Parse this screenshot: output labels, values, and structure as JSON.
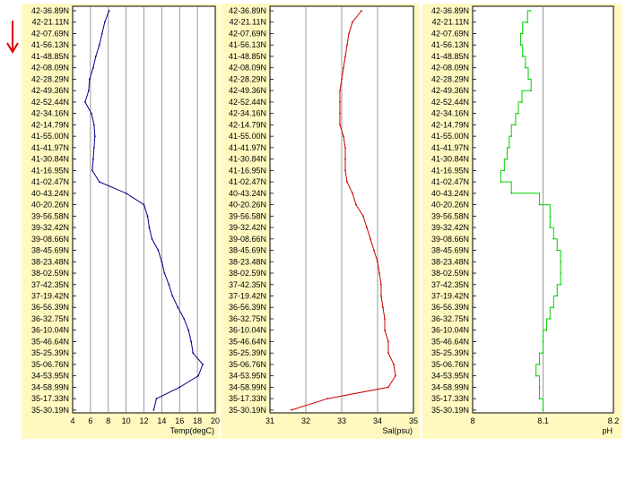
{
  "indicator": {
    "icon": "down-arrow-icon",
    "color": "#e00000"
  },
  "colors": {
    "panel_bg": "#fff9c0",
    "plot_bg": "#ffffff",
    "grid": "#808080"
  },
  "y_categories": [
    "42-36.89N",
    "42-21.11N",
    "42-07.69N",
    "41-56.13N",
    "41-48.85N",
    "42-08.09N",
    "42-28.29N",
    "42-49.36N",
    "42-52.44N",
    "42-34.16N",
    "42-14.79N",
    "41-55.00N",
    "41-41.97N",
    "41-30.84N",
    "41-16.95N",
    "41-02.47N",
    "40-43.24N",
    "40-20.26N",
    "39-56.58N",
    "39-32.42N",
    "39-08.66N",
    "38-45.69N",
    "38-23.48N",
    "38-02.59N",
    "37-42.35N",
    "37-19.42N",
    "36-56.39N",
    "36-32.75N",
    "36-10.04N",
    "35-46.64N",
    "35-25.39N",
    "35-06.76N",
    "34-53.95N",
    "34-58.99N",
    "35-17.33N",
    "35-30.19N"
  ],
  "chart_data": [
    {
      "type": "line",
      "orientation": "vertical-profile",
      "xlabel": "Temp(degC)",
      "xlim": [
        4,
        20
      ],
      "xticks": [
        "4",
        "6",
        "8",
        "10",
        "12",
        "14",
        "16",
        "18",
        "20"
      ],
      "grid": true,
      "color": "#00008b",
      "series": [
        {
          "values": [
            8.1,
            7.6,
            7.3,
            7.0,
            6.6,
            6.3,
            5.9,
            5.8,
            5.4,
            6.1,
            6.4,
            6.5,
            6.4,
            6.3,
            6.2,
            7.0,
            10.0,
            12.0,
            12.4,
            12.6,
            12.9,
            13.6,
            14.0,
            14.3,
            14.8,
            15.2,
            15.8,
            16.5,
            17.0,
            17.3,
            17.5,
            18.6,
            18.1,
            16.0,
            13.4,
            13.1
          ]
        }
      ]
    },
    {
      "type": "line",
      "orientation": "vertical-profile",
      "xlabel": "Sal(psu)",
      "xlim": [
        31,
        35
      ],
      "xticks": [
        "31",
        "32",
        "33",
        "34",
        "35"
      ],
      "grid": true,
      "color": "#cc0000",
      "series": [
        {
          "values": [
            33.55,
            33.3,
            33.2,
            33.15,
            33.1,
            33.05,
            33.0,
            32.95,
            32.95,
            32.95,
            32.95,
            33.05,
            33.1,
            33.1,
            33.1,
            33.15,
            33.3,
            33.4,
            33.6,
            33.7,
            33.8,
            33.9,
            34.0,
            34.05,
            34.1,
            34.1,
            34.15,
            34.2,
            34.2,
            34.3,
            34.3,
            34.45,
            34.5,
            34.3,
            32.6,
            31.6
          ]
        }
      ]
    },
    {
      "type": "line",
      "orientation": "vertical-profile",
      "xlabel": "pH",
      "xlim": [
        8,
        8.2
      ],
      "xticks": [
        "8",
        "8.1",
        "8.2"
      ],
      "grid": true,
      "color": "#00d000",
      "series": [
        {
          "values": [
            8.082,
            8.078,
            8.071,
            8.068,
            8.071,
            8.075,
            8.079,
            8.083,
            8.07,
            8.065,
            8.061,
            8.055,
            8.052,
            8.049,
            8.045,
            8.04,
            8.055,
            8.095,
            8.11,
            8.11,
            8.115,
            8.12,
            8.125,
            8.125,
            8.125,
            8.12,
            8.115,
            8.11,
            8.105,
            8.1,
            8.1,
            8.095,
            8.09,
            8.095,
            8.095,
            8.1
          ]
        }
      ]
    }
  ]
}
